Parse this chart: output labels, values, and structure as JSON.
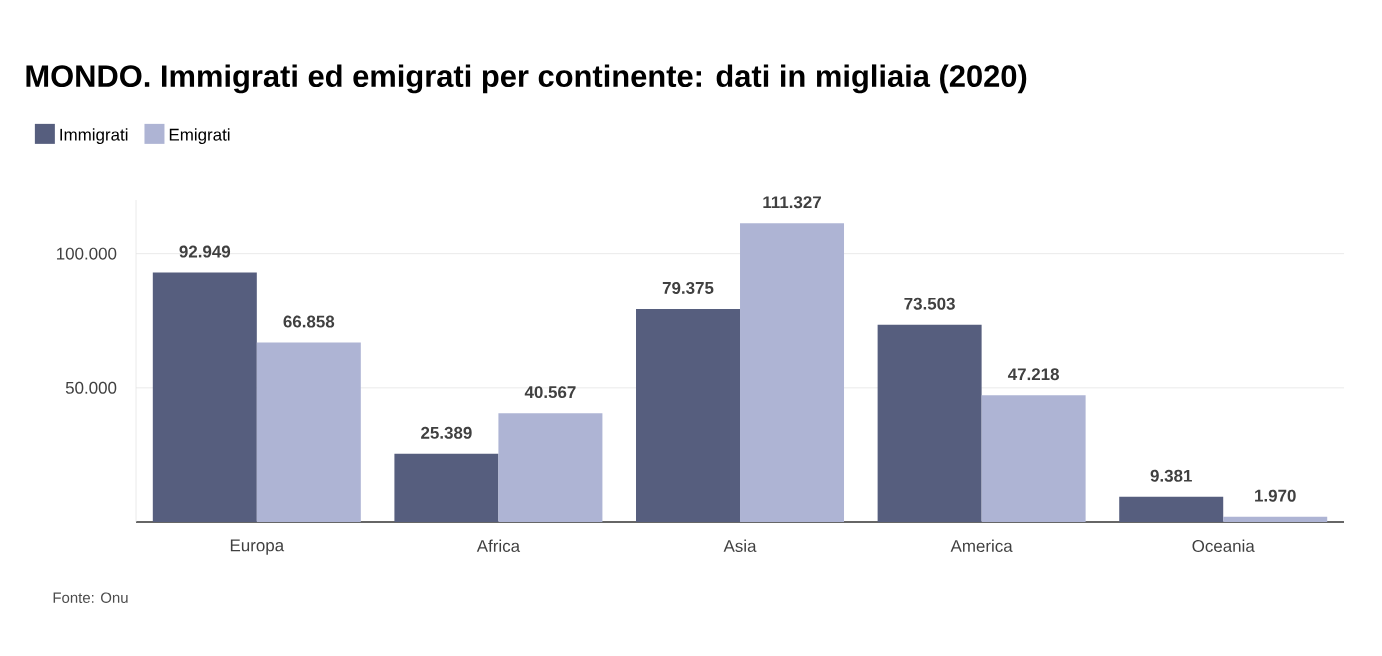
{
  "chart_data": {
    "type": "bar",
    "title": "MONDO. Immigrati ed emigrati per continente: dati in migliaia (2020)",
    "categories": [
      "Europa",
      "Africa",
      "Asia",
      "America",
      "Oceania"
    ],
    "series": [
      {
        "name": "Immigrati",
        "color": "#565e7e",
        "values": [
          92949,
          25389,
          79375,
          73503,
          9381
        ],
        "value_labels": [
          "92.949",
          "25.389",
          "79.375",
          "73.503",
          "9.381"
        ]
      },
      {
        "name": "Emigrati",
        "color": "#aeb4d4",
        "values": [
          66858,
          40567,
          111327,
          47218,
          1970
        ],
        "value_labels": [
          "66.858",
          "40.567",
          "111.327",
          "47.218",
          "1.970"
        ]
      }
    ],
    "ylim": [
      0,
      120000
    ],
    "yticks": [
      {
        "value": 50000,
        "label": "50.000"
      },
      {
        "value": 100000,
        "label": "100.000"
      }
    ],
    "grid": "y",
    "legend": "top left",
    "annotations": [
      "Fonte: Onu"
    ]
  }
}
